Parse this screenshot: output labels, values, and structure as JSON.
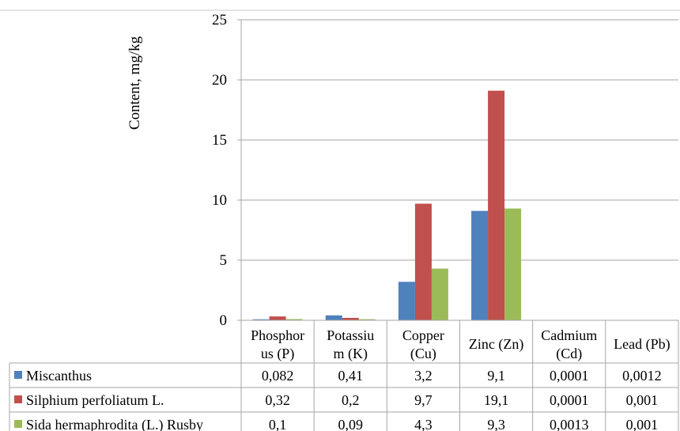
{
  "chart_data": {
    "type": "bar",
    "ylabel": "Content, mg/kg",
    "ylim": [
      0,
      25
    ],
    "yticks": [
      "0",
      "5",
      "10",
      "15",
      "20",
      "25"
    ],
    "grid": true,
    "legend": "table-left",
    "categories": [
      [
        "Phosphor",
        "us (P)"
      ],
      [
        "Potassiu",
        "m (K)"
      ],
      [
        "Copper",
        "(Cu)"
      ],
      [
        "Zinc (Zn)"
      ],
      [
        "Cadmium",
        "(Cd)"
      ],
      [
        "Lead (Pb)"
      ]
    ],
    "series": [
      {
        "name": "Miscanthus",
        "color": "#4f81bd",
        "values": [
          0.082,
          0.41,
          3.2,
          9.1,
          0.0001,
          0.0012
        ],
        "labels": [
          "0,082",
          "0,41",
          "3,2",
          "9,1",
          "0,0001",
          "0,0012"
        ]
      },
      {
        "name": "Silphium perfoliatum L.",
        "color": "#c0504d",
        "values": [
          0.32,
          0.2,
          9.7,
          19.1,
          0.0001,
          0.001
        ],
        "labels": [
          "0,32",
          "0,2",
          "9,7",
          "19,1",
          "0,0001",
          "0,001"
        ]
      },
      {
        "name": "Sida hermaphrodita (L.) Rusby",
        "color": "#9bbb59",
        "values": [
          0.1,
          0.09,
          4.3,
          9.3,
          0.0013,
          0.001
        ],
        "labels": [
          "0,1",
          "0,09",
          "4,3",
          "9,3",
          "0,0013",
          "0,001"
        ]
      }
    ]
  }
}
